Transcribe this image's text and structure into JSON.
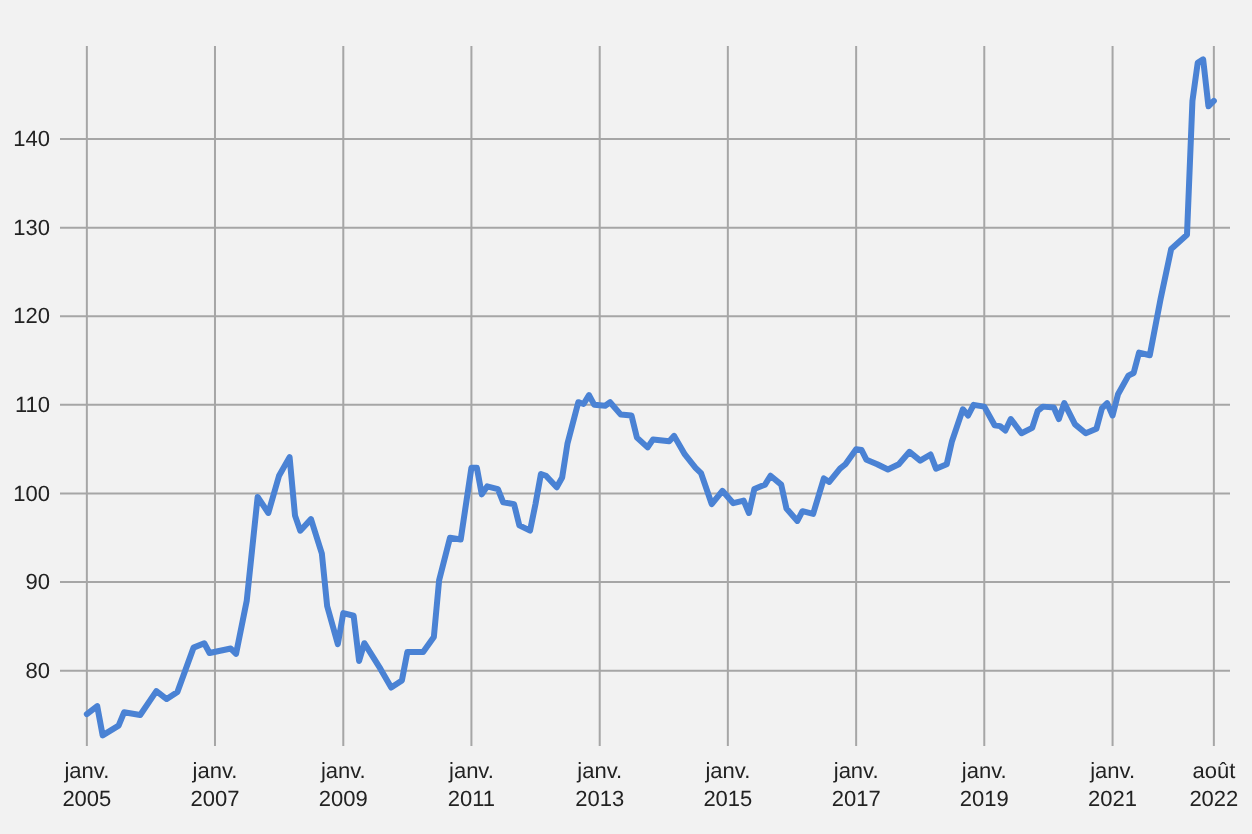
{
  "chart_data": {
    "type": "line",
    "x": [
      "2005-01",
      "2005-03",
      "2005-04",
      "2005-07",
      "2005-08",
      "2005-11",
      "2006-02",
      "2006-04",
      "2006-06",
      "2006-09",
      "2006-11",
      "2006-12",
      "2007-04",
      "2007-05",
      "2007-07",
      "2007-09",
      "2007-11",
      "2008-01",
      "2008-03",
      "2008-04",
      "2008-05",
      "2008-07",
      "2008-09",
      "2008-10",
      "2008-12",
      "2009-01",
      "2009-03",
      "2009-04",
      "2009-05",
      "2009-08",
      "2009-10",
      "2009-12",
      "2010-01",
      "2010-04",
      "2010-06",
      "2010-07",
      "2010-09",
      "2010-11",
      "2011-01",
      "2011-02",
      "2011-03",
      "2011-04",
      "2011-06",
      "2011-07",
      "2011-09",
      "2011-10",
      "2011-12",
      "2012-01",
      "2012-02",
      "2012-03",
      "2012-05",
      "2012-06",
      "2012-07",
      "2012-09",
      "2012-10",
      "2012-11",
      "2012-12",
      "2013-02",
      "2013-03",
      "2013-05",
      "2013-07",
      "2013-08",
      "2013-10",
      "2013-11",
      "2014-02",
      "2014-03",
      "2014-05",
      "2014-07",
      "2014-08",
      "2014-10",
      "2014-12",
      "2015-02",
      "2015-04",
      "2015-05",
      "2015-06",
      "2015-08",
      "2015-09",
      "2015-11",
      "2015-12",
      "2016-02",
      "2016-03",
      "2016-05",
      "2016-07",
      "2016-08",
      "2016-10",
      "2016-11",
      "2017-01",
      "2017-02",
      "2017-03",
      "2017-05",
      "2017-07",
      "2017-09",
      "2017-11",
      "2018-01",
      "2018-03",
      "2018-04",
      "2018-06",
      "2018-07",
      "2018-09",
      "2018-10",
      "2018-11",
      "2019-01",
      "2019-03",
      "2019-04",
      "2019-05",
      "2019-06",
      "2019-08",
      "2019-10",
      "2019-11",
      "2019-12",
      "2020-02",
      "2020-03",
      "2020-04",
      "2020-06",
      "2020-08",
      "2020-10",
      "2020-11",
      "2020-12",
      "2021-01",
      "2021-02",
      "2021-04",
      "2021-05",
      "2021-06",
      "2021-08",
      "2021-10",
      "2021-12",
      "2022-03",
      "2022-04",
      "2022-05",
      "2022-06",
      "2022-07",
      "2022-08"
    ],
    "series": [
      {
        "color": "#4a82d4",
        "values": [
          75.1,
          76.0,
          72.7,
          73.8,
          75.3,
          75.0,
          77.7,
          76.8,
          77.6,
          82.6,
          83.1,
          82.0,
          82.5,
          81.9,
          87.9,
          99.6,
          97.8,
          102.0,
          104.1,
          97.5,
          95.8,
          97.1,
          93.2,
          87.3,
          83.0,
          86.5,
          86.2,
          81.1,
          83.1,
          80.2,
          78.1,
          78.9,
          82.1,
          82.1,
          83.8,
          90.2,
          95.0,
          94.8,
          102.9,
          102.9,
          99.9,
          100.8,
          100.5,
          99.0,
          98.8,
          96.4,
          95.8,
          98.8,
          102.2,
          102.0,
          100.7,
          101.8,
          105.6,
          110.3,
          110.1,
          111.1,
          110.0,
          109.9,
          110.3,
          108.9,
          108.8,
          106.3,
          105.2,
          106.1,
          105.9,
          106.5,
          104.4,
          102.9,
          102.3,
          98.8,
          100.3,
          98.9,
          99.2,
          97.8,
          100.5,
          101.0,
          102.0,
          101.0,
          98.3,
          96.9,
          98.0,
          97.7,
          101.7,
          101.3,
          102.8,
          103.3,
          105.0,
          104.9,
          103.8,
          103.3,
          102.7,
          103.3,
          104.7,
          103.7,
          104.4,
          102.8,
          103.3,
          105.9,
          109.5,
          108.8,
          110.0,
          109.8,
          107.7,
          107.6,
          107.1,
          108.4,
          106.8,
          107.4,
          109.3,
          109.8,
          109.7,
          108.4,
          110.2,
          107.8,
          106.8,
          107.3,
          109.6,
          110.2,
          108.8,
          111.2,
          113.3,
          113.6,
          115.9,
          115.6,
          121.9,
          127.6,
          129.2,
          144.3,
          148.6,
          149.0,
          143.7,
          144.3
        ]
      }
    ],
    "xlim": [
      "2004-08",
      "2022-11"
    ],
    "xticks": [
      {
        "value": "2005-01",
        "label": "janv. 2005"
      },
      {
        "value": "2007-01",
        "label": "janv. 2007"
      },
      {
        "value": "2009-01",
        "label": "janv. 2009"
      },
      {
        "value": "2011-01",
        "label": "janv. 2011"
      },
      {
        "value": "2013-01",
        "label": "janv. 2013"
      },
      {
        "value": "2015-01",
        "label": "janv. 2015"
      },
      {
        "value": "2017-01",
        "label": "janv. 2017"
      },
      {
        "value": "2019-01",
        "label": "janv. 2019"
      },
      {
        "value": "2021-01",
        "label": "janv. 2021"
      },
      {
        "value": "2022-08",
        "label": "août 2022"
      }
    ],
    "ylim": [
      71.5,
      150.5
    ],
    "yticks": [
      80,
      90,
      100,
      110,
      120,
      130,
      140
    ],
    "grid": true,
    "marker": "none",
    "line_style": "solid"
  }
}
